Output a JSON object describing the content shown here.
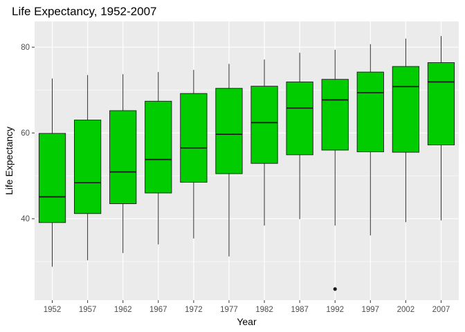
{
  "chart_data": {
    "type": "boxplot",
    "title": "Life Expectancy, 1952-2007",
    "xlabel": "Year",
    "ylabel": "Life Expectancy",
    "ylim": [
      21,
      86
    ],
    "yticks": [
      40,
      60,
      80
    ],
    "grid": true,
    "legend": "none",
    "colors": {
      "panel_bg": "#ebebeb",
      "grid_major": "#ffffff",
      "box_fill": "#00cc00",
      "box_stroke": "#1a1a1a",
      "text": "#000000",
      "tick_text": "#4d4d4d"
    },
    "categories": [
      "1952",
      "1957",
      "1962",
      "1967",
      "1972",
      "1977",
      "1982",
      "1987",
      "1992",
      "1997",
      "2002",
      "2007"
    ],
    "boxes": [
      {
        "year": "1952",
        "min": 28.8,
        "q1": 39.1,
        "median": 45.1,
        "q3": 59.9,
        "max": 72.7,
        "outliers": []
      },
      {
        "year": "1957",
        "min": 30.3,
        "q1": 41.2,
        "median": 48.4,
        "q3": 63.0,
        "max": 73.5,
        "outliers": []
      },
      {
        "year": "1962",
        "min": 32.0,
        "q1": 43.5,
        "median": 50.9,
        "q3": 65.2,
        "max": 73.7,
        "outliers": []
      },
      {
        "year": "1967",
        "min": 34.0,
        "q1": 46.0,
        "median": 53.8,
        "q3": 67.4,
        "max": 74.2,
        "outliers": []
      },
      {
        "year": "1972",
        "min": 35.4,
        "q1": 48.5,
        "median": 56.5,
        "q3": 69.2,
        "max": 74.7,
        "outliers": []
      },
      {
        "year": "1977",
        "min": 31.2,
        "q1": 50.5,
        "median": 59.7,
        "q3": 70.4,
        "max": 76.1,
        "outliers": []
      },
      {
        "year": "1982",
        "min": 38.4,
        "q1": 52.9,
        "median": 62.4,
        "q3": 70.9,
        "max": 77.1,
        "outliers": []
      },
      {
        "year": "1987",
        "min": 39.9,
        "q1": 54.9,
        "median": 65.8,
        "q3": 71.9,
        "max": 78.7,
        "outliers": []
      },
      {
        "year": "1992",
        "min": 38.4,
        "q1": 56.0,
        "median": 67.7,
        "q3": 72.5,
        "max": 79.4,
        "outliers": [
          23.6
        ]
      },
      {
        "year": "1997",
        "min": 36.1,
        "q1": 55.6,
        "median": 69.4,
        "q3": 74.2,
        "max": 80.7,
        "outliers": []
      },
      {
        "year": "2002",
        "min": 39.2,
        "q1": 55.5,
        "median": 70.8,
        "q3": 75.5,
        "max": 82.0,
        "outliers": []
      },
      {
        "year": "2007",
        "min": 39.6,
        "q1": 57.2,
        "median": 71.9,
        "q3": 76.4,
        "max": 82.6,
        "outliers": []
      }
    ]
  }
}
